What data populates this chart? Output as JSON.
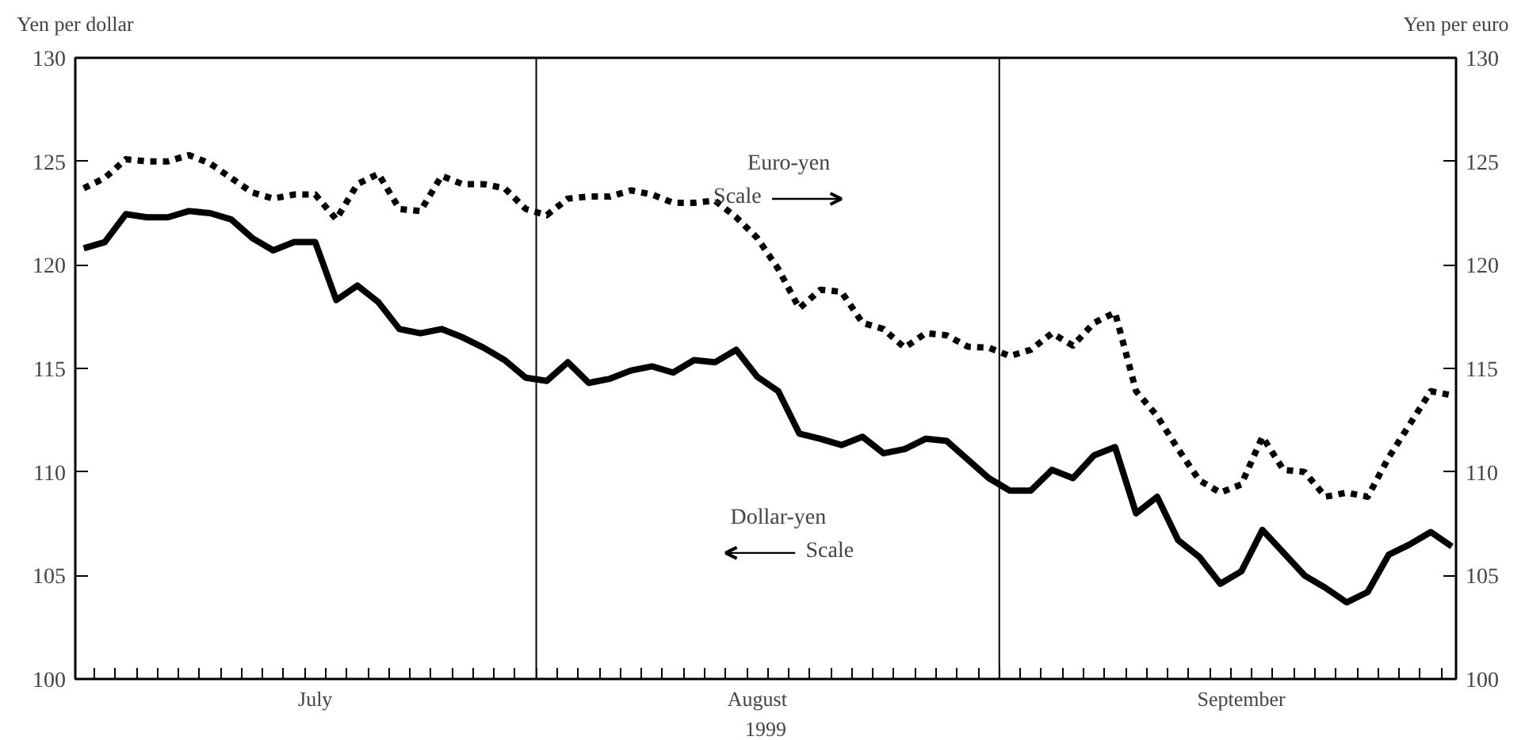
{
  "chart_data": {
    "type": "line",
    "ylabel": "Yen per dollar",
    "y2label": "Yen per euro",
    "xlabel": "1999",
    "categories": [
      null,
      null,
      null,
      null,
      null,
      null,
      null,
      null,
      null,
      null,
      null,
      "July",
      null,
      null,
      null,
      null,
      null,
      null,
      null,
      null,
      null,
      null,
      null,
      null,
      null,
      null,
      null,
      null,
      null,
      null,
      null,
      null,
      "August",
      null,
      null,
      null,
      null,
      null,
      null,
      null,
      null,
      null,
      null,
      null,
      null,
      null,
      null,
      null,
      null,
      null,
      null,
      null,
      null,
      null,
      null,
      "September",
      null,
      null,
      null,
      null,
      null,
      null,
      null,
      null,
      null,
      null
    ],
    "ylim": [
      100,
      130
    ],
    "yticks": [
      100,
      105,
      110,
      115,
      120,
      125,
      130
    ],
    "y2lim": [
      100,
      130
    ],
    "y2ticks": [
      100,
      105,
      110,
      115,
      120,
      125,
      130
    ],
    "grid": false,
    "legend": false,
    "marker": "none",
    "series": [
      {
        "name": "Dollar-yen",
        "color": "#000000",
        "axis": "y",
        "line_style": "solid",
        "values": [
          120.8,
          121.1,
          122.45,
          122.3,
          122.3,
          122.6,
          122.5,
          122.2,
          121.3,
          120.7,
          121.1,
          121.1,
          118.3,
          119.0,
          118.2,
          116.9,
          116.7,
          116.9,
          116.5,
          116.0,
          115.4,
          114.55,
          114.4,
          115.3,
          114.3,
          114.5,
          114.9,
          115.1,
          114.8,
          115.4,
          115.3,
          115.9,
          114.6,
          113.9,
          111.85,
          111.6,
          111.3,
          111.7,
          110.9,
          111.1,
          111.6,
          111.5,
          110.6,
          109.7,
          109.1,
          109.1,
          110.1,
          109.7,
          110.8,
          111.2,
          108.0,
          108.8,
          106.7,
          105.9,
          104.6,
          105.2,
          107.2,
          106.1,
          105.0,
          104.4,
          103.7,
          104.2,
          106.0,
          106.5,
          107.1,
          106.4
        ]
      },
      {
        "name": "Euro-yen",
        "color": "#000000",
        "axis": "y2",
        "line_style": "dotted",
        "values": [
          123.7,
          124.2,
          125.1,
          125.0,
          125.0,
          125.3,
          124.9,
          124.2,
          123.5,
          123.2,
          123.4,
          123.4,
          122.2,
          123.9,
          124.4,
          122.7,
          122.6,
          124.3,
          123.9,
          123.9,
          123.7,
          122.7,
          122.4,
          123.2,
          123.3,
          123.3,
          123.6,
          123.4,
          123.0,
          123.0,
          123.1,
          122.3,
          121.3,
          119.8,
          117.9,
          118.8,
          118.7,
          117.2,
          116.9,
          116.0,
          116.7,
          116.6,
          116.05,
          116.0,
          115.6,
          115.9,
          116.7,
          116.1,
          117.2,
          117.7,
          113.9,
          112.7,
          111.1,
          109.6,
          109.0,
          109.4,
          111.7,
          110.1,
          110.0,
          108.8,
          109.0,
          108.8,
          110.7,
          112.3,
          113.9,
          113.7
        ]
      }
    ],
    "annotations": [
      "Scale",
      "Scale"
    ]
  }
}
